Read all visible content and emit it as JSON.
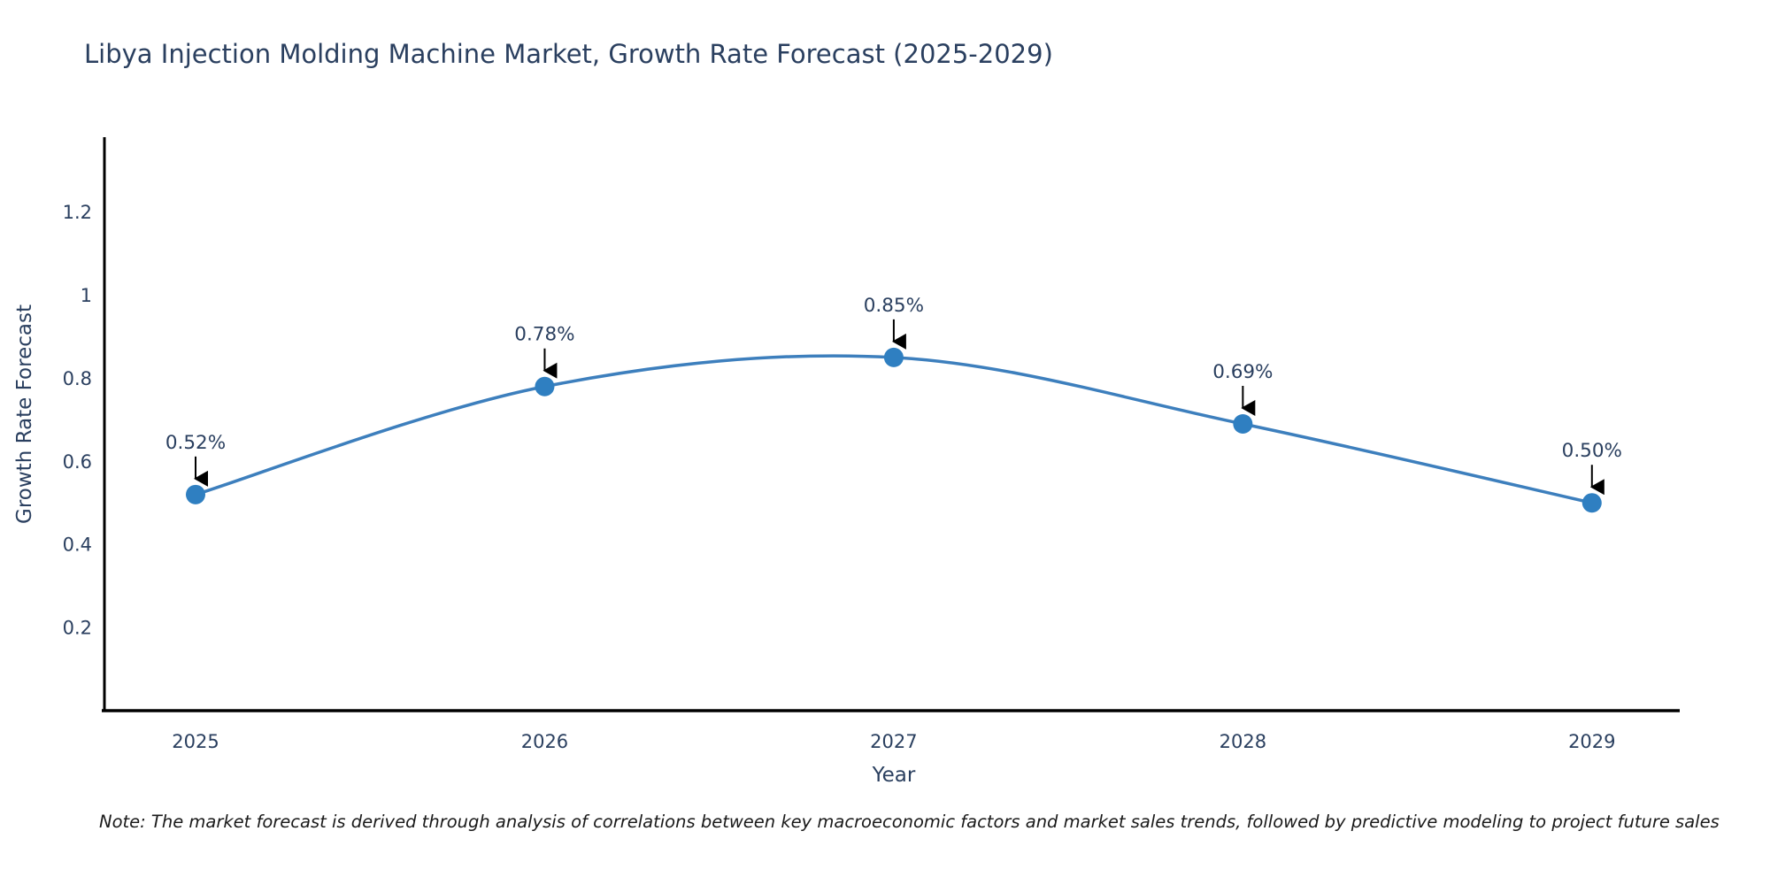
{
  "note": {
    "text": "Note: The market forecast is derived through analysis of correlations between key macroeconomic factors and market sales trends, followed by predictive modeling to project future sales"
  },
  "chart_data": {
    "type": "line",
    "title": "Libya Injection Molding Machine Market, Growth Rate Forecast (2025-2029)",
    "xlabel": "Year",
    "ylabel": "Growth Rate Forecast",
    "categories": [
      "2025",
      "2026",
      "2027",
      "2028",
      "2029"
    ],
    "series": [
      {
        "name": "Growth Rate Forecast",
        "values": [
          0.52,
          0.78,
          0.85,
          0.69,
          0.5
        ]
      }
    ],
    "point_labels": [
      "0.52%",
      "0.78%",
      "0.85%",
      "0.69%",
      "0.50%"
    ],
    "yticks": [
      0.2,
      0.4,
      0.6,
      0.8,
      1,
      1.2
    ],
    "ylim": [
      0,
      1.38
    ],
    "line_shape": "spline",
    "grid": false,
    "legend_position": "none",
    "annotations_have_arrows": true,
    "colors": {
      "line": "#3d7fbd",
      "marker": "#2f7fc1",
      "text": "#2a3f5f",
      "axis": "#000000",
      "arrow": "#000000"
    }
  }
}
